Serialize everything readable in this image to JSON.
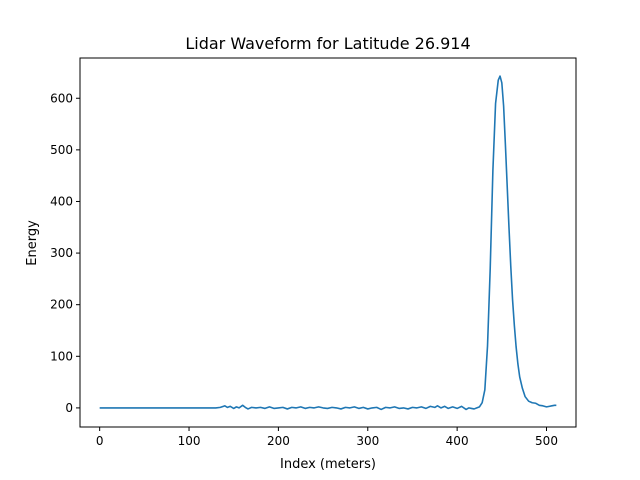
{
  "chart_data": {
    "type": "line",
    "title": "Lidar Waveform for Latitude 26.914",
    "xlabel": "Index (meters)",
    "ylabel": "Energy",
    "xlim": [
      -22,
      533
    ],
    "ylim": [
      -37,
      678
    ],
    "xticks": [
      0,
      100,
      200,
      300,
      400,
      500
    ],
    "yticks": [
      0,
      100,
      200,
      300,
      400,
      500,
      600
    ],
    "grid": false,
    "series": [
      {
        "color": "#1f77b4",
        "x": [
          0,
          50,
          100,
          130,
          135,
          140,
          143,
          146,
          150,
          153,
          156,
          160,
          163,
          166,
          170,
          175,
          180,
          185,
          190,
          195,
          200,
          205,
          210,
          215,
          220,
          225,
          230,
          235,
          240,
          245,
          250,
          255,
          260,
          265,
          270,
          275,
          280,
          285,
          290,
          295,
          300,
          305,
          310,
          315,
          320,
          325,
          330,
          335,
          340,
          345,
          350,
          355,
          360,
          365,
          370,
          375,
          378,
          382,
          386,
          390,
          395,
          400,
          405,
          410,
          413,
          416,
          419,
          422,
          425,
          428,
          431,
          434,
          437,
          440,
          443,
          446,
          448,
          450,
          452,
          454,
          456,
          458,
          460,
          462,
          464,
          466,
          468,
          470,
          473,
          476,
          480,
          484,
          488,
          492,
          496,
          500,
          503,
          506,
          509,
          511
        ],
        "y": [
          0,
          0,
          0,
          0,
          1,
          4,
          1,
          3,
          -1,
          2,
          0,
          5,
          1,
          -2,
          1,
          0,
          1,
          -1,
          2,
          -1,
          0,
          1,
          -2,
          1,
          0,
          2,
          -1,
          1,
          0,
          2,
          0,
          -1,
          1,
          0,
          -2,
          1,
          0,
          2,
          -1,
          1,
          -2,
          0,
          1,
          -3,
          1,
          0,
          2,
          -1,
          0,
          -2,
          1,
          0,
          2,
          -1,
          3,
          1,
          4,
          0,
          3,
          -1,
          2,
          -1,
          3,
          -3,
          0,
          -1,
          -2,
          0,
          2,
          10,
          35,
          120,
          270,
          460,
          590,
          635,
          643,
          630,
          585,
          510,
          430,
          350,
          275,
          210,
          160,
          118,
          85,
          60,
          38,
          22,
          13,
          10,
          9,
          5,
          4,
          2,
          3,
          4,
          5,
          5
        ]
      }
    ]
  }
}
